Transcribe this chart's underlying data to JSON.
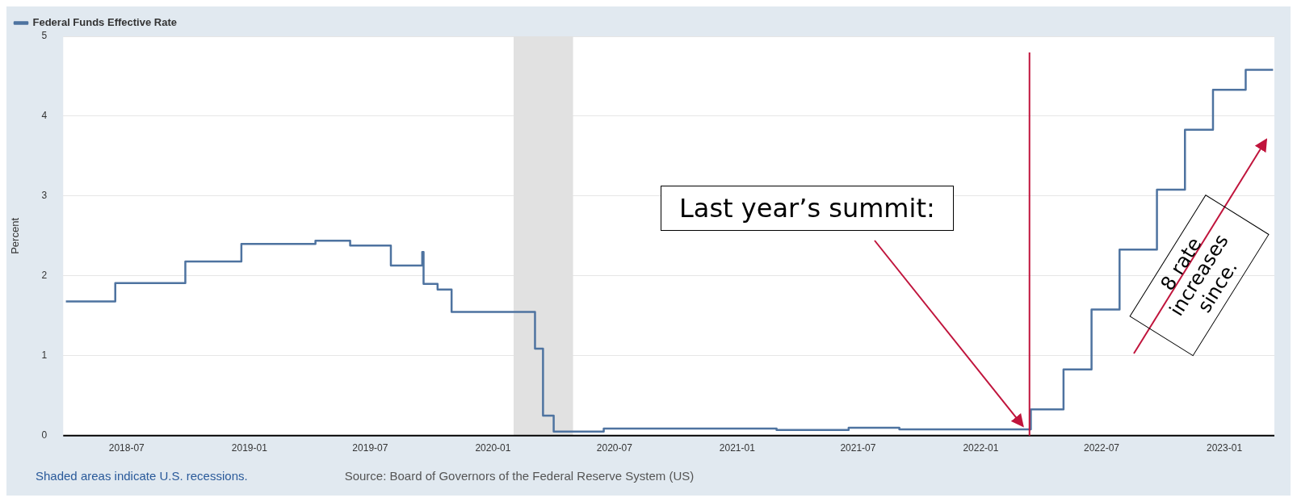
{
  "chart_data": {
    "type": "step",
    "ylabel": "Percent",
    "legend": "top left",
    "grid": "y",
    "series": [
      {
        "name": "Federal Funds Effective Rate",
        "color": "#4e73a0",
        "x": [
          "2018-04-01",
          "2018-06-14",
          "2018-09-27",
          "2018-12-20",
          "2019-04-10",
          "2019-06-01",
          "2019-08-01",
          "2019-09-17",
          "2019-09-19",
          "2019-10-10",
          "2019-10-31",
          "2020-03-04",
          "2020-03-16",
          "2020-04-01",
          "2020-06-15",
          "2021-03-01",
          "2021-06-17",
          "2021-09-01",
          "2022-03-17",
          "2022-05-05",
          "2022-06-16",
          "2022-07-28",
          "2022-09-22",
          "2022-11-03",
          "2022-12-15",
          "2023-02-02",
          "2023-03-15"
        ],
        "values": [
          1.68,
          1.91,
          2.18,
          2.4,
          2.44,
          2.38,
          2.13,
          2.3,
          1.9,
          1.83,
          1.55,
          1.09,
          0.25,
          0.05,
          0.09,
          0.07,
          0.1,
          0.08,
          0.33,
          0.83,
          1.58,
          2.33,
          3.08,
          3.83,
          4.33,
          4.58,
          4.58
        ]
      }
    ],
    "xlim": [
      "2018-03-28",
      "2023-03-17"
    ],
    "xticks": [
      "2018-07",
      "2019-01",
      "2019-07",
      "2020-01",
      "2020-07",
      "2021-01",
      "2021-07",
      "2022-01",
      "2022-07",
      "2023-01"
    ],
    "ylim": [
      0,
      5
    ],
    "yticks": [
      0,
      1,
      2,
      3,
      4,
      5
    ],
    "bands": [
      {
        "axis": "x",
        "from": "2020-02-01",
        "to": "2020-04-30",
        "color": "#e1e1e1"
      }
    ],
    "ref_lines": [
      {
        "axis": "x",
        "value": "2022-03-15",
        "color": "#c0143c"
      }
    ],
    "annotations": [
      {
        "text": "Last year’s summit:",
        "x": "2022-03-10",
        "y": 0.08
      },
      "8 rate increases since.",
      "Shaded areas indicate U.S. recessions.",
      "Source: Board of Governors of the Federal Reserve System (US)"
    ]
  }
}
